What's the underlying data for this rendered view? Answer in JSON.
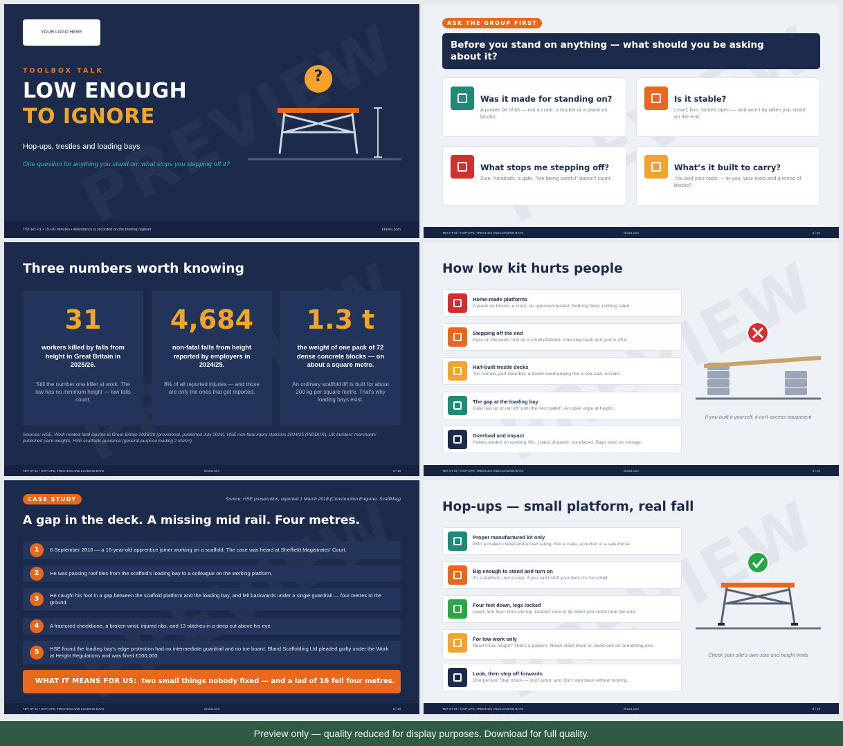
{
  "watermark": "PREVIEW",
  "slides": [
    {
      "logo": "YOUR LOGO HERE",
      "kicker": "TOOLBOX TALK",
      "title_line1": "LOW ENOUGH",
      "title_line2": "TO IGNORE",
      "subtitle": "Hop-ups, trestles and loading bays",
      "tagline": "One question for anything you stand on: what stops you stepping off it?",
      "icon": "?",
      "footer_left": "TBT-HT-01 • 15–20 minutes • Attendance is recorded on the briefing register",
      "footer_right": "elnora.com"
    },
    {
      "badge": "ASK THE GROUP FIRST",
      "question": "Before you stand on anything — what should you be asking about it?",
      "cards": [
        {
          "title": "Was it made for standing on?",
          "text": "A proper bit of kit — not a crate, a bucket or a plank on blocks."
        },
        {
          "title": "Is it stable?",
          "text": "Level, firm, locked open — and won't tip when you stand on the end."
        },
        {
          "title": "What stops me stepping off?",
          "text": "Size, handrails, a gate. \"Me being careful\" doesn't count."
        },
        {
          "title": "What’s it built to carry?",
          "text": "You and your tools — or you, your tools and a tonne of blocks?"
        }
      ],
      "footer_left": "TBT-HT-01 • HOP-UPS, TRESTLES AND LOADING BAYS",
      "footer_center": "elnora.com",
      "footer_page": "2 / 10"
    },
    {
      "title": "Three numbers worth knowing",
      "stats": [
        {
          "number": "31",
          "label": "workers killed by falls from height in Great Britain in 2025/26.",
          "note": "Still the number one killer at work. The law has no minimum height — low falls count."
        },
        {
          "number": "4,684",
          "label": "non-fatal falls from height reported by employers in 2024/25.",
          "note": "8% of all reported injuries — and those are only the ones that got reported."
        },
        {
          "number": "1.3 t",
          "label": "the weight of one pack of 72 dense concrete blocks — on about a square metre.",
          "note": "An ordinary scaffold lift is built for about 200 kg per square metre. That's why loading bays exist."
        }
      ],
      "sources": "Sources: HSE, Work-related fatal injuries in Great Britain 2025/26 (provisional, published July 2026); HSE non-fatal injury statistics 2024/25 (RIDDOR); UK builders' merchants' published pack weights; HSE scaffolds guidance (general-purpose loading 2 kN/m²).",
      "footer_left": "TBT-HT-01 • HOP-UPS, TRESTLES AND LOADING BAYS",
      "footer_center": "elnora.com",
      "footer_page": "3 / 10"
    },
    {
      "title": "How low kit hurts people",
      "items": [
        {
          "title": "Home-made platforms",
          "text": "A plank on blocks, a crate, an upturned bucket. Nothing fixed, nothing rated."
        },
        {
          "title": "Stepping off the end",
          "text": "Eyes on the work, feet on a small platform. One step back and you're off it."
        },
        {
          "title": "Half-built trestle decks",
          "text": "Too narrow, part-boarded, a board overhanging like a see-saw, no rails."
        },
        {
          "title": "The gap at the loading bay",
          "text": "Gate tied up or rail off \"until the next pallet\". An open edge at height."
        },
        {
          "title": "Overload and impact",
          "text": "Pallets landed on working lifts. Loads dropped, not placed. Bays used as storage."
        }
      ],
      "caption": "If you built it yourself, it isn't access equipment",
      "footer_left": "TBT-HT-01 • HOP-UPS, TRESTLES AND LOADING BAYS",
      "footer_center": "elnora.com",
      "footer_page": "4 / 10"
    },
    {
      "badge": "CASE STUDY",
      "source": "Source: HSE prosecution, reported 1 March 2018 (Construction Enquirer, ScaffMag)",
      "title": "A gap in the deck. A missing mid rail. Four metres.",
      "steps": [
        {
          "num": "1",
          "text": "6 September 2016 — a 16-year-old apprentice joiner working on a scaffold. The case was heard at Sheffield Magistrates' Court."
        },
        {
          "num": "2",
          "text": "He was passing roof tiles from the scaffold's loading bay to a colleague on the working platform."
        },
        {
          "num": "3",
          "text": "He caught his foot in a gap between the scaffold platform and the loading bay, and fell backwards under a single guardrail — four metres to the ground."
        },
        {
          "num": "4",
          "text": "A fractured cheekbone, a broken wrist, injured ribs, and 13 stitches in a deep cut above his eye."
        },
        {
          "num": "5",
          "text": "HSE found the loading bay's edge protection had no intermediate guardrail and no toe board. Bland Scaffolding Ltd pleaded guilty under the Work at Height Regulations and was fined £100,000."
        }
      ],
      "callout_label": "WHAT IT MEANS FOR US:",
      "callout_text": "two small things nobody fixed — and a lad of 16 fell four metres.",
      "footer_left": "TBT-HT-01 • HOP-UPS, TRESTLES AND LOADING BAYS",
      "footer_center": "elnora.com",
      "footer_page": "5 / 10"
    },
    {
      "title": "Hop-ups — small platform, real fall",
      "items": [
        {
          "title": "Proper manufactured kit only",
          "text": "With a maker's label and a load rating. Not a crate, a bucket or a saw-horse."
        },
        {
          "title": "Big enough to stand and turn on",
          "text": "It's a platform, not a step. If you can't shift your feet, it's too small."
        },
        {
          "title": "Four feet down, legs locked",
          "text": "Level, firm floor. Non-slip top. Doesn't rock or tip when you stand near the end."
        },
        {
          "title": "For low work only",
          "text": "Need more height? That's a podium. Never stack them or stand one on something else."
        },
        {
          "title": "Look, then step off forwards",
          "text": "One person. Step down — don't jump, and don't step back without looking."
        }
      ],
      "caption": "Check your site's own size and height limits",
      "footer_left": "TBT-HT-01 • HOP-UPS, TRESTLES AND LOADING BAYS",
      "footer_center": "elnora.com",
      "footer_page": "6 / 10"
    }
  ],
  "banner": "Preview only — quality reduced for display purposes. Download for full quality."
}
